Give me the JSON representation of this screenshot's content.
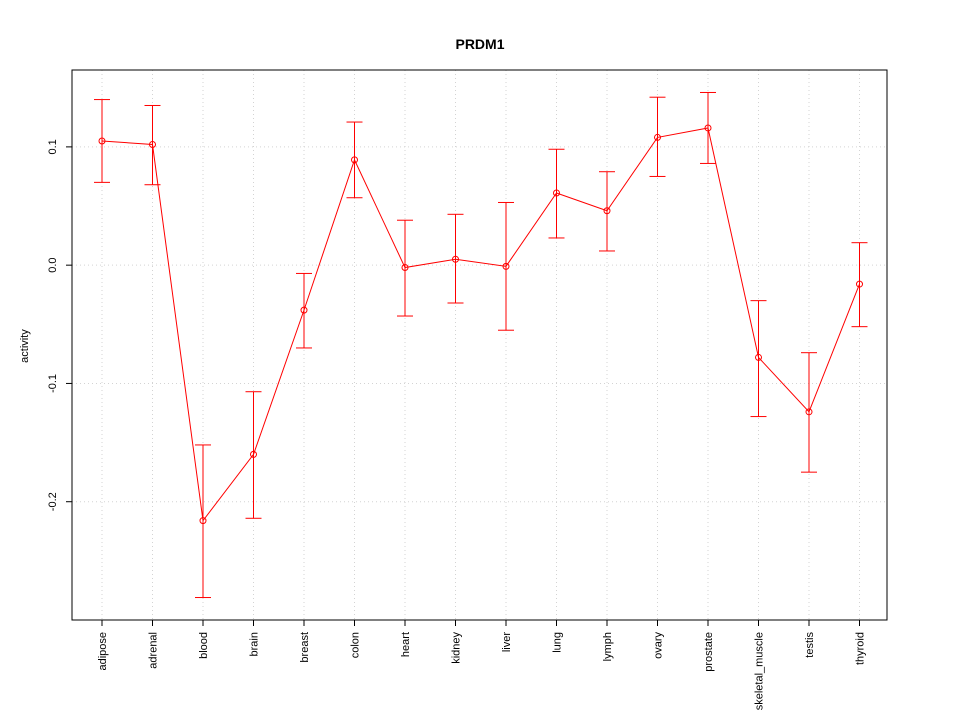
{
  "chart_data": {
    "type": "line",
    "title": "PRDM1",
    "xlabel": "",
    "ylabel": "activity",
    "categories": [
      "adipose",
      "adrenal",
      "blood",
      "brain",
      "breast",
      "colon",
      "heart",
      "kidney",
      "liver",
      "lung",
      "lymph",
      "ovary",
      "prostate",
      "skeletal_muscle",
      "testis",
      "thyroid"
    ],
    "series": [
      {
        "values": [
          0.105,
          0.102,
          -0.216,
          -0.16,
          -0.038,
          0.089,
          -0.002,
          0.005,
          -0.001,
          0.061,
          0.046,
          0.108,
          0.116,
          -0.078,
          -0.124,
          -0.016
        ],
        "upper": [
          0.14,
          0.135,
          -0.152,
          -0.107,
          -0.007,
          0.121,
          0.038,
          0.043,
          0.053,
          0.098,
          0.079,
          0.142,
          0.146,
          -0.03,
          -0.074,
          0.019
        ],
        "lower": [
          0.07,
          0.068,
          -0.281,
          -0.214,
          -0.07,
          0.057,
          -0.043,
          -0.032,
          -0.055,
          0.023,
          0.012,
          0.075,
          0.086,
          -0.128,
          -0.175,
          -0.052
        ]
      }
    ],
    "yticks": [
      -0.2,
      -0.1,
      0.0,
      0.1
    ],
    "ytick_labels": [
      "-0.2",
      "-0.1",
      "0.0",
      "0.1"
    ],
    "ylim": [
      -0.3,
      0.165
    ],
    "grid": true,
    "color": "#ff0000"
  }
}
